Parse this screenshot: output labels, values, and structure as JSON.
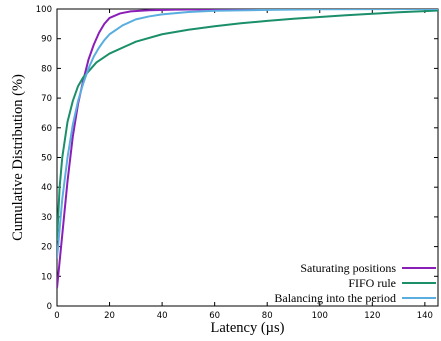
{
  "chart_data": {
    "type": "line",
    "xlabel": "Latency (µs)",
    "ylabel": "Cumulative Distribution (%)",
    "xlim": [
      0,
      145
    ],
    "ylim": [
      0,
      100
    ],
    "xticks": [
      0,
      20,
      40,
      60,
      80,
      100,
      120,
      140
    ],
    "yticks": [
      0,
      10,
      20,
      30,
      40,
      50,
      60,
      70,
      80,
      90,
      100
    ],
    "grid": false,
    "legend_position": "bottom-right",
    "series": [
      {
        "name": "Saturating positions",
        "color": "#8a1fb8",
        "x": [
          0,
          2,
          4,
          6,
          8,
          10,
          12,
          14,
          16,
          18,
          20,
          24,
          28,
          35,
          45,
          60,
          80,
          145
        ],
        "y": [
          6,
          24,
          42,
          57,
          68,
          76,
          83,
          88,
          92,
          95,
          97,
          98.5,
          99.2,
          99.6,
          99.8,
          99.9,
          100,
          100
        ]
      },
      {
        "name": "FIFO rule",
        "color": "#1a8f6a",
        "x": [
          0,
          1,
          2,
          4,
          6,
          8,
          10,
          15,
          20,
          30,
          40,
          50,
          60,
          70,
          80,
          90,
          100,
          110,
          120,
          130,
          140,
          145
        ],
        "y": [
          22,
          40,
          50,
          62,
          69,
          74,
          77,
          82,
          85,
          89,
          91.5,
          93,
          94.2,
          95.2,
          96,
          96.7,
          97.3,
          97.9,
          98.4,
          98.9,
          99.3,
          99.5
        ]
      },
      {
        "name": "Balancing into the period",
        "color": "#5aaedf",
        "x": [
          0,
          2,
          4,
          6,
          8,
          10,
          12,
          14,
          16,
          18,
          20,
          25,
          30,
          35,
          40,
          50,
          60,
          80,
          100,
          145
        ],
        "y": [
          16,
          36,
          50,
          61,
          69,
          75,
          80,
          84,
          87,
          89.5,
          91.5,
          94.5,
          96.5,
          97.5,
          98.2,
          99,
          99.4,
          99.7,
          99.9,
          100
        ]
      }
    ]
  }
}
